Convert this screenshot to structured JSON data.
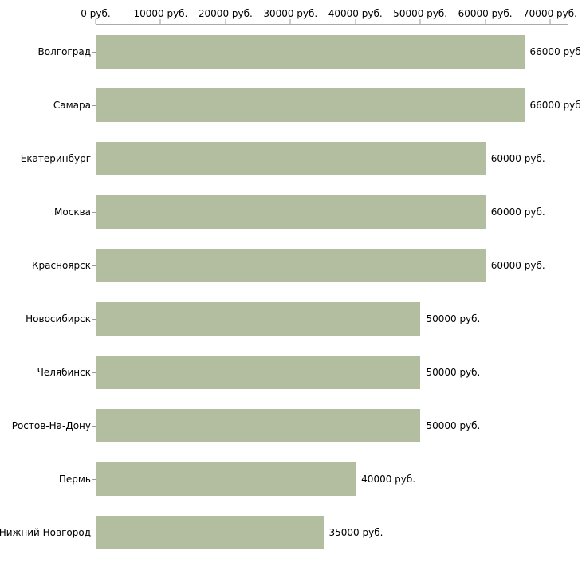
{
  "chart_data": {
    "type": "bar",
    "orientation": "horizontal",
    "title": "",
    "xlabel": "",
    "ylabel": "",
    "xlim": [
      0,
      72700
    ],
    "grid": false,
    "legend": false,
    "bar_color": "#b3bda0",
    "axis_color": "#999999",
    "x_ticks": [
      {
        "value": 0,
        "label": "0 руб."
      },
      {
        "value": 10000,
        "label": "10000 руб."
      },
      {
        "value": 20000,
        "label": "20000 руб."
      },
      {
        "value": 30000,
        "label": "30000 руб."
      },
      {
        "value": 40000,
        "label": "40000 руб."
      },
      {
        "value": 50000,
        "label": "50000 руб."
      },
      {
        "value": 60000,
        "label": "60000 руб."
      },
      {
        "value": 70000,
        "label": "70000 руб."
      }
    ],
    "bars": [
      {
        "category": "Волгоград",
        "value": 66000,
        "label": "66000 руб"
      },
      {
        "category": "Самара",
        "value": 66000,
        "label": "66000 руб"
      },
      {
        "category": "Екатеринбург",
        "value": 60000,
        "label": "60000 руб."
      },
      {
        "category": "Москва",
        "value": 60000,
        "label": "60000 руб."
      },
      {
        "category": "Красноярск",
        "value": 60000,
        "label": "60000 руб."
      },
      {
        "category": "Новосибирск",
        "value": 50000,
        "label": "50000 руб."
      },
      {
        "category": "Челябинск",
        "value": 50000,
        "label": "50000 руб."
      },
      {
        "category": "Ростов-На-Дону",
        "value": 50000,
        "label": "50000 руб."
      },
      {
        "category": "Пермь",
        "value": 40000,
        "label": "40000 руб."
      },
      {
        "category": "Нижний Новгород",
        "value": 35000,
        "label": "35000 руб."
      }
    ]
  }
}
